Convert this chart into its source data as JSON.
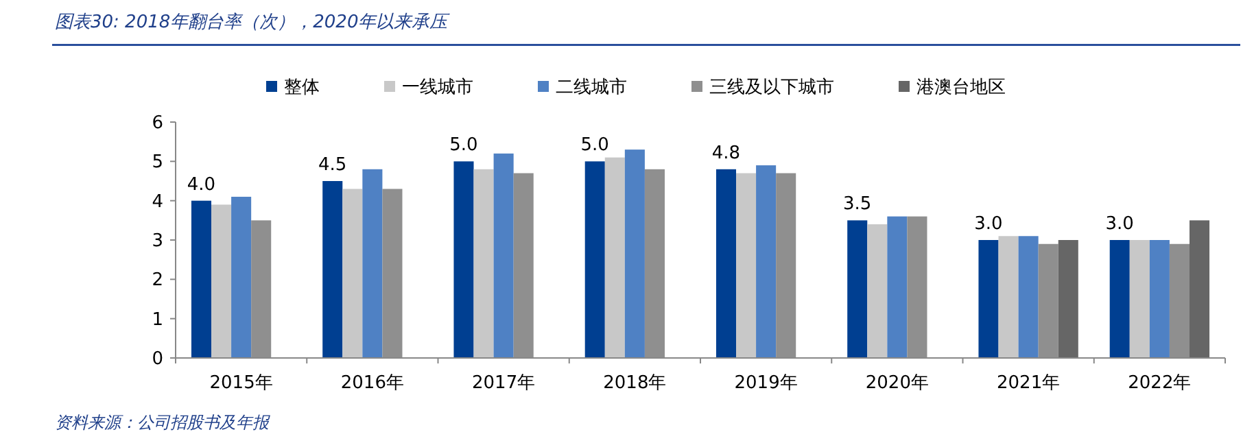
{
  "chart_data": {
    "type": "bar",
    "title": "图表30: 2018年翻台率（次），2020年以来承压",
    "annotations": [
      "资料来源：公司招股书及年报"
    ],
    "categories": [
      "2015年",
      "2016年",
      "2017年",
      "2018年",
      "2019年",
      "2020年",
      "2021年",
      "2022年"
    ],
    "series": [
      {
        "name": "整体",
        "color": "#003f91",
        "values": [
          4.0,
          4.5,
          5.0,
          5.0,
          4.8,
          3.5,
          3.0,
          3.0
        ],
        "value_labels": [
          "4.0",
          "4.5",
          "5.0",
          "5.0",
          "4.8",
          "3.5",
          "3.0",
          "3.0"
        ]
      },
      {
        "name": "一线城市",
        "color": "#c8c8c8",
        "values": [
          3.9,
          4.3,
          4.8,
          5.1,
          4.7,
          3.4,
          3.1,
          3.0
        ]
      },
      {
        "name": "二线城市",
        "color": "#4f81c4",
        "values": [
          4.1,
          4.8,
          5.2,
          5.3,
          4.9,
          3.6,
          3.1,
          3.0
        ]
      },
      {
        "name": "三线及以下城市",
        "color": "#8f8f8f",
        "values": [
          3.5,
          4.3,
          4.7,
          4.8,
          4.7,
          3.6,
          2.9,
          2.9
        ]
      },
      {
        "name": "港澳台地区",
        "color": "#666666",
        "values": [
          null,
          null,
          null,
          null,
          null,
          null,
          3.0,
          3.5
        ]
      }
    ],
    "ylim": [
      0,
      6
    ],
    "yticks": [
      0,
      1,
      2,
      3,
      4,
      5,
      6
    ],
    "grid": false,
    "legend": "top"
  }
}
